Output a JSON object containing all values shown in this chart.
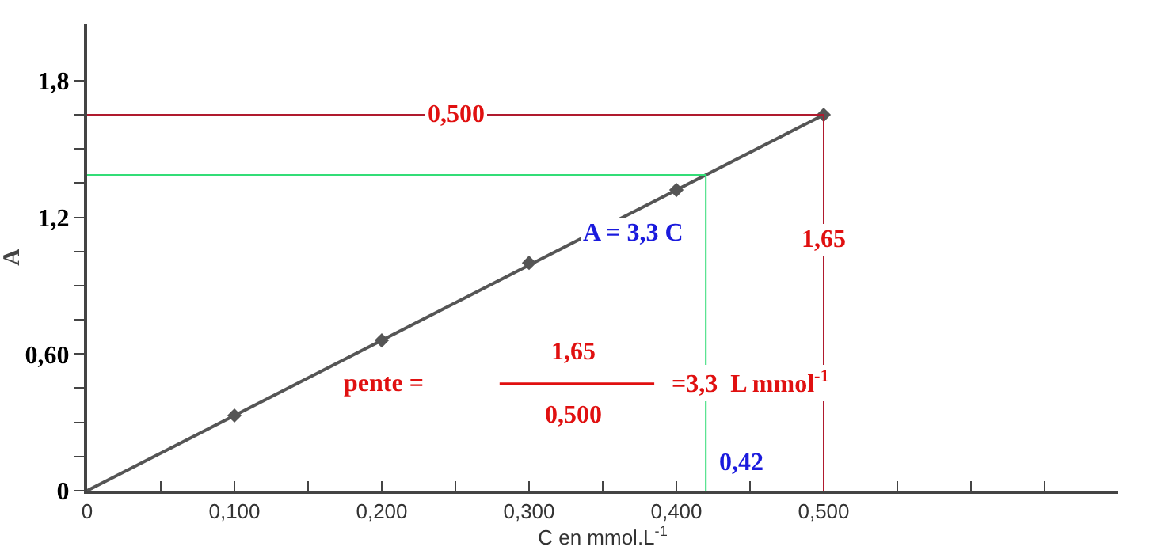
{
  "chart_data": {
    "type": "scatter",
    "xlabel": "C en mmol.L$^{-1}$",
    "ylabel": "A",
    "xlim": [
      0,
      0.7
    ],
    "ylim": [
      0,
      2.05
    ],
    "xticks": [
      {
        "value": 0,
        "label": "0"
      },
      {
        "value": 0.05,
        "label": null
      },
      {
        "value": 0.1,
        "label": "0,100"
      },
      {
        "value": 0.15,
        "label": null
      },
      {
        "value": 0.2,
        "label": "0,200"
      },
      {
        "value": 0.25,
        "label": null
      },
      {
        "value": 0.3,
        "label": "0,300"
      },
      {
        "value": 0.35,
        "label": null
      },
      {
        "value": 0.4,
        "label": "0,400"
      },
      {
        "value": 0.45,
        "label": null
      },
      {
        "value": 0.5,
        "label": "0,500"
      },
      {
        "value": 0.55,
        "label": null
      },
      {
        "value": 0.6,
        "label": null
      },
      {
        "value": 0.65,
        "label": null
      }
    ],
    "yticks": [
      {
        "value": 0,
        "label": "0"
      },
      {
        "value": 0.15,
        "label": null
      },
      {
        "value": 0.3,
        "label": null
      },
      {
        "value": 0.45,
        "label": null
      },
      {
        "value": 0.6,
        "label": "0,60"
      },
      {
        "value": 0.75,
        "label": null
      },
      {
        "value": 0.9,
        "label": null
      },
      {
        "value": 1.05,
        "label": null
      },
      {
        "value": 1.2,
        "label": "1,2"
      },
      {
        "value": 1.35,
        "label": null
      },
      {
        "value": 1.5,
        "label": null
      },
      {
        "value": 1.65,
        "label": null
      },
      {
        "value": 1.8,
        "label": "1,8"
      }
    ],
    "x": [
      0.1,
      0.2,
      0.3,
      0.4,
      0.5
    ],
    "series": [
      {
        "color": "#555555",
        "marker": "diamond",
        "values": [
          0.33,
          0.66,
          1.0,
          1.32,
          1.65
        ]
      },
      {
        "type": "line",
        "color": "#555555",
        "x": [
          0,
          0.5
        ],
        "values": [
          0,
          1.65
        ]
      }
    ],
    "ref_lines": [
      {
        "axis": "y",
        "value": 1.65,
        "color": "#b01a2e"
      },
      {
        "axis": "x",
        "value": 0.5,
        "color": "#b01a2e"
      },
      {
        "axis": "y",
        "value": 1.386,
        "color": "#33dd77"
      },
      {
        "axis": "x",
        "value": 0.42,
        "color": "#33dd77"
      }
    ],
    "annotations": [
      "A = 3,3 C",
      {
        "text": "0,500",
        "x": 0.25,
        "y": 1.65
      },
      {
        "text": "1,65",
        "x": 0.5,
        "y": 1.1
      },
      {
        "text": "0,42",
        "x": 0.42,
        "y": 0.12
      },
      "pente =",
      "1,65",
      "0,500",
      "=3,3  L mmol$^{-1}$"
    ],
    "line_style": "solid"
  }
}
